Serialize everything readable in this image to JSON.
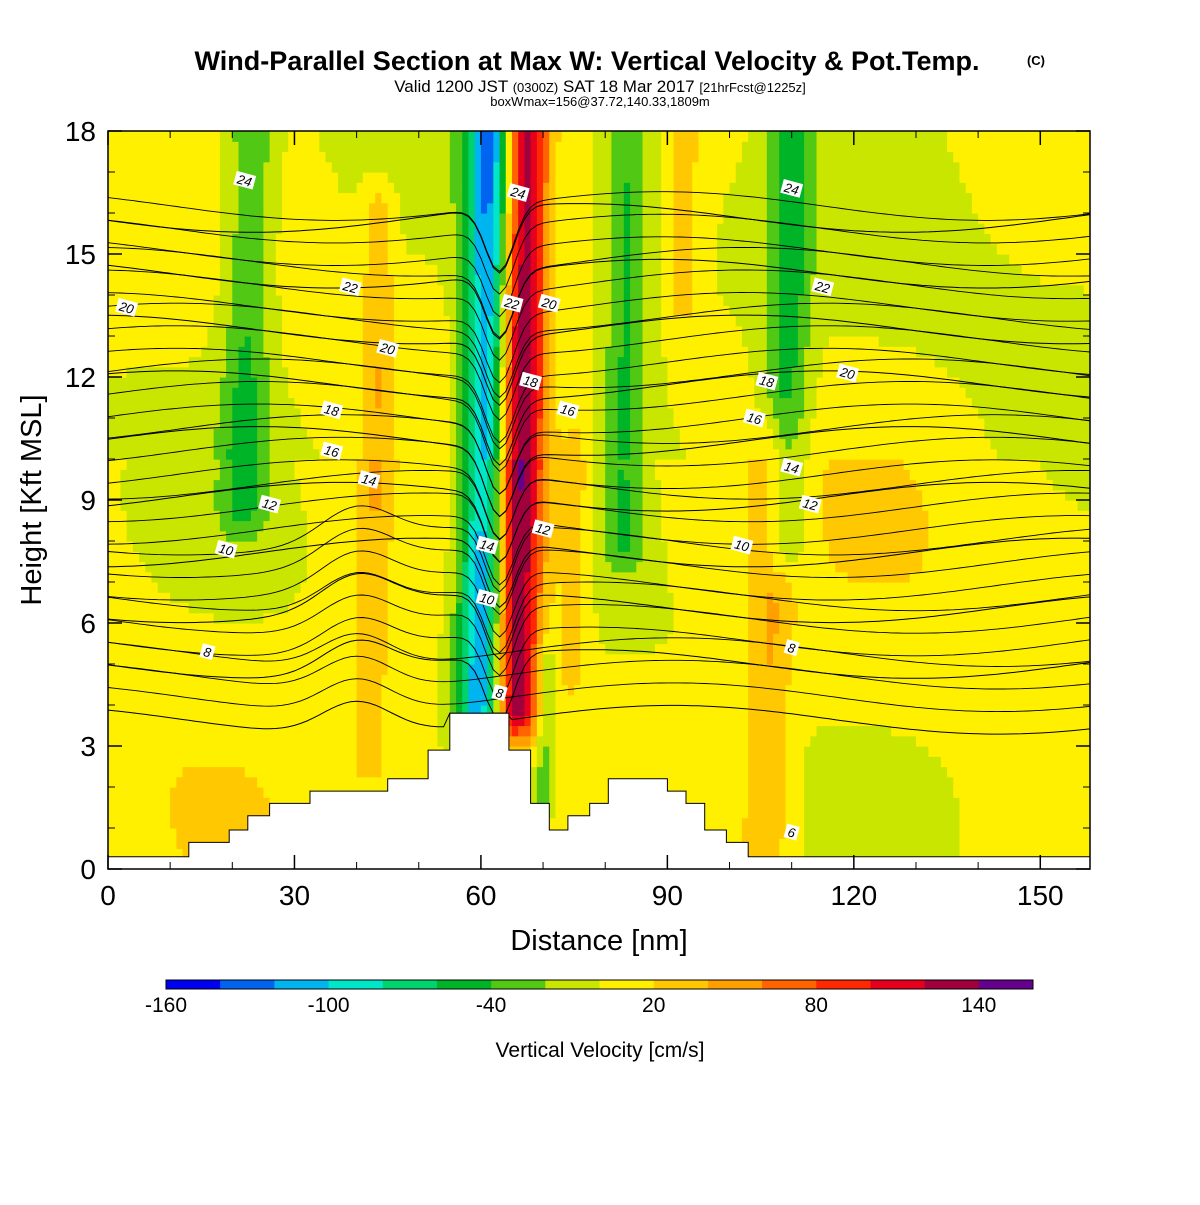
{
  "title": {
    "main": "Wind-Parallel Section at Max W: Vertical Velocity & Pot.Temp.",
    "copyright": "(C)",
    "valid_prefix": "Valid 1200 JST",
    "valid_utc": "(0300Z)",
    "valid_date": "SAT 18 Mar 2017",
    "forecast": "[21hrFcst@1225z]",
    "boxw": "boxWmax=156@37.72,140.33,1809m"
  },
  "chart_data": {
    "type": "heatmap",
    "xlabel": "Distance [nm]",
    "ylabel": "Height [Kft MSL]",
    "xlim": [
      0,
      158
    ],
    "ylim": [
      0,
      18
    ],
    "x_ticks": [
      0,
      30,
      60,
      90,
      120,
      150
    ],
    "y_ticks": [
      0,
      3,
      6,
      9,
      12,
      15,
      18
    ],
    "colorbar": {
      "label": "Vertical Velocity [cm/s]",
      "tick_labels": [
        "-160",
        "-100",
        "-40",
        "20",
        "80",
        "140"
      ],
      "tick_values": [
        -160,
        -100,
        -40,
        20,
        80,
        140
      ],
      "levels": [
        -160,
        -140,
        -120,
        -100,
        -80,
        -60,
        -40,
        -20,
        0,
        20,
        40,
        60,
        80,
        100,
        120,
        140,
        160
      ],
      "colors": [
        "#0000f0",
        "#0064f0",
        "#00b4f0",
        "#00e6c8",
        "#00d26e",
        "#00b428",
        "#50c814",
        "#c8e600",
        "#fff000",
        "#ffc800",
        "#ffa000",
        "#ff6400",
        "#ff2800",
        "#e6001e",
        "#a0003c",
        "#64008c"
      ]
    },
    "w_features": [
      {
        "x": 61,
        "z0": 4.0,
        "z1": 18,
        "w": -140,
        "width": 4.0
      },
      {
        "x": 66,
        "z0": 4.0,
        "z1": 18,
        "w": 150,
        "width": 4.0
      },
      {
        "x": 22,
        "z0": 9,
        "z1": 18,
        "w": -45,
        "width": 4.0
      },
      {
        "x": 83,
        "z0": 8,
        "z1": 18,
        "w": -45,
        "width": 3.5
      },
      {
        "x": 109,
        "z0": 8,
        "z1": 18,
        "w": -50,
        "width": 3.5
      },
      {
        "x": 43,
        "z0": 3,
        "z1": 16,
        "w": 30,
        "width": 2.5
      },
      {
        "x": 75,
        "z0": 5,
        "z1": 10,
        "w": 30,
        "width": 2.0
      },
      {
        "x": 107,
        "z0": 1,
        "z1": 10,
        "w": 35,
        "width": 3.5
      },
      {
        "x": 92,
        "z0": 14,
        "z1": 18,
        "w": 30,
        "width": 2.0
      },
      {
        "x": 71,
        "z0": 1,
        "z1": 5,
        "w": -35,
        "width": 1.5
      }
    ],
    "terrain": [
      [
        0,
        0.3
      ],
      [
        13,
        0.3
      ],
      [
        13,
        0.65
      ],
      [
        19.5,
        0.65
      ],
      [
        19.5,
        0.95
      ],
      [
        22.5,
        0.95
      ],
      [
        22.5,
        1.3
      ],
      [
        26,
        1.3
      ],
      [
        26,
        1.6
      ],
      [
        32.5,
        1.6
      ],
      [
        32.5,
        1.9
      ],
      [
        45,
        1.9
      ],
      [
        45,
        2.2
      ],
      [
        51.5,
        2.2
      ],
      [
        51.5,
        2.9
      ],
      [
        55,
        2.9
      ],
      [
        55,
        3.8
      ],
      [
        64.5,
        3.8
      ],
      [
        64.5,
        2.9
      ],
      [
        68,
        2.9
      ],
      [
        68,
        1.6
      ],
      [
        71,
        1.6
      ],
      [
        71,
        0.95
      ],
      [
        74,
        0.95
      ],
      [
        74,
        1.3
      ],
      [
        77.5,
        1.3
      ],
      [
        77.5,
        1.6
      ],
      [
        80.5,
        1.6
      ],
      [
        80.5,
        2.2
      ],
      [
        90,
        2.2
      ],
      [
        90,
        1.9
      ],
      [
        93,
        1.9
      ],
      [
        93,
        1.6
      ],
      [
        96,
        1.6
      ],
      [
        96,
        0.95
      ],
      [
        99.5,
        0.95
      ],
      [
        99.5,
        0.65
      ],
      [
        103,
        0.65
      ],
      [
        103,
        0.3
      ],
      [
        158,
        0.3
      ]
    ],
    "theta_levels": [
      6,
      8,
      10,
      12,
      14,
      16,
      18,
      20,
      22,
      24
    ],
    "theta_labels": [
      {
        "v": "24",
        "x": 22,
        "y": 16.8
      },
      {
        "v": "24",
        "x": 66,
        "y": 16.5
      },
      {
        "v": "24",
        "x": 110,
        "y": 16.6
      },
      {
        "v": "22",
        "x": 39,
        "y": 14.2
      },
      {
        "v": "22",
        "x": 65,
        "y": 13.8
      },
      {
        "v": "22",
        "x": 115,
        "y": 14.2
      },
      {
        "v": "20",
        "x": 3,
        "y": 13.7
      },
      {
        "v": "20",
        "x": 45,
        "y": 12.7
      },
      {
        "v": "20",
        "x": 71,
        "y": 13.8
      },
      {
        "v": "20",
        "x": 119,
        "y": 12.1
      },
      {
        "v": "18",
        "x": 36,
        "y": 11.2
      },
      {
        "v": "18",
        "x": 68,
        "y": 11.9
      },
      {
        "v": "18",
        "x": 106,
        "y": 11.9
      },
      {
        "v": "16",
        "x": 36,
        "y": 10.2
      },
      {
        "v": "16",
        "x": 74,
        "y": 11.2
      },
      {
        "v": "16",
        "x": 104,
        "y": 11.0
      },
      {
        "v": "14",
        "x": 42,
        "y": 9.5
      },
      {
        "v": "14",
        "x": 61,
        "y": 7.9
      },
      {
        "v": "14",
        "x": 110,
        "y": 9.8
      },
      {
        "v": "12",
        "x": 26,
        "y": 8.9
      },
      {
        "v": "12",
        "x": 70,
        "y": 8.3
      },
      {
        "v": "12",
        "x": 113,
        "y": 8.9
      },
      {
        "v": "10",
        "x": 19,
        "y": 7.8
      },
      {
        "v": "10",
        "x": 61,
        "y": 6.6
      },
      {
        "v": "10",
        "x": 102,
        "y": 7.9
      },
      {
        "v": "8",
        "x": 16,
        "y": 5.3
      },
      {
        "v": "8",
        "x": 63,
        "y": 4.3
      },
      {
        "v": "8",
        "x": 110,
        "y": 5.4
      },
      {
        "v": "6",
        "x": 110,
        "y": 0.9
      }
    ]
  }
}
